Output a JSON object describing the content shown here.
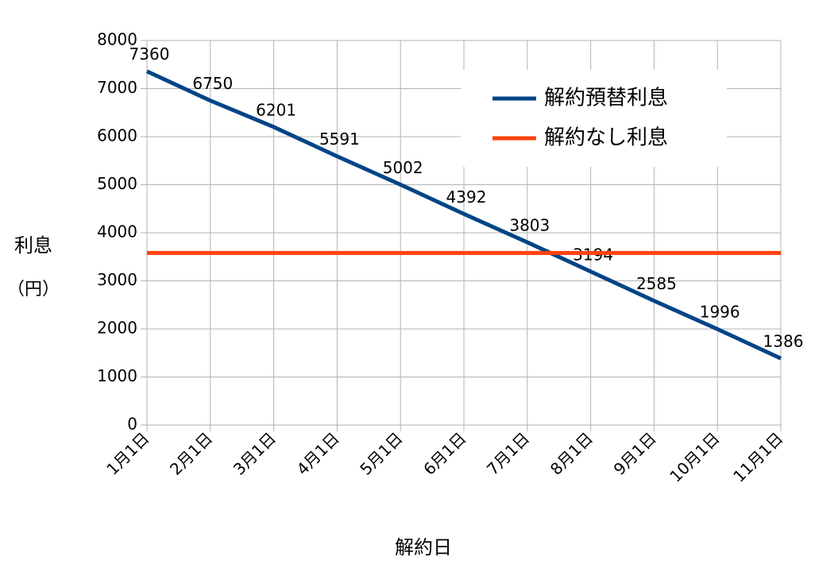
{
  "chart_data": {
    "type": "line",
    "x_label": "解約日",
    "y_label": "利息",
    "y_unit": "（円）",
    "categories": [
      "1月1日",
      "2月1日",
      "3月1日",
      "4月1日",
      "5月1日",
      "6月1日",
      "7月1日",
      "8月1日",
      "9月1日",
      "10月1日",
      "11月1日"
    ],
    "series": [
      {
        "name": "解約預替利息",
        "color": "#004586",
        "values": [
          7360,
          6750,
          6201,
          5591,
          5002,
          4392,
          3803,
          3194,
          2585,
          1996,
          1386
        ],
        "data_labels": true
      },
      {
        "name": "解約なし利息",
        "color": "#ff420e",
        "values": [
          3580,
          3580,
          3580,
          3580,
          3580,
          3580,
          3580,
          3580,
          3580,
          3580,
          3580
        ],
        "data_labels": false
      }
    ],
    "ylim": [
      0,
      8000
    ],
    "yticks": [
      0,
      1000,
      2000,
      3000,
      4000,
      5000,
      6000,
      7000,
      8000
    ],
    "grid": true,
    "legend": "upper right"
  }
}
